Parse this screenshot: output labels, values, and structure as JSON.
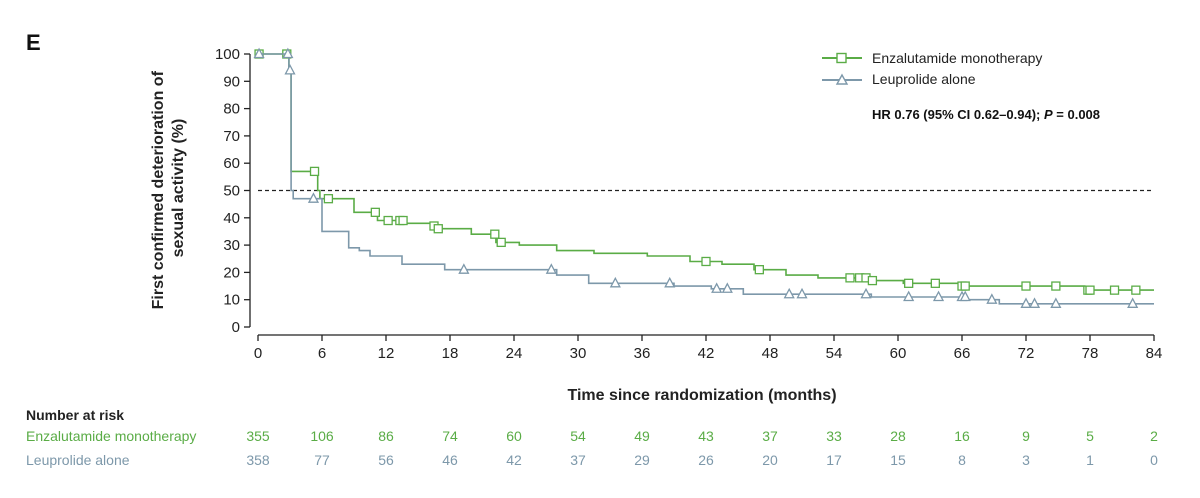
{
  "chart_data": {
    "type": "line",
    "panel_label": "E",
    "xlabel": "Time since randomization (months)",
    "ylabel_lines": [
      "First confirmed deterioration of",
      "sexual activity (%)"
    ],
    "xlim": [
      0,
      84
    ],
    "ylim": [
      0,
      100
    ],
    "xticks": [
      0,
      6,
      12,
      18,
      24,
      30,
      36,
      42,
      48,
      54,
      60,
      66,
      72,
      78,
      84
    ],
    "yticks": [
      0,
      10,
      20,
      30,
      40,
      50,
      60,
      70,
      80,
      90,
      100
    ],
    "reference_line_y": 50,
    "legend_position": "top-right",
    "annotation": {
      "pre": "HR 0.76 (95% CI 0.62–0.94); ",
      "p_label": "P",
      "post": " = 0.008"
    },
    "series": [
      {
        "name": "Enzalutamide monotherapy",
        "color": "#5aac46",
        "marker": "square",
        "steps": [
          [
            0,
            100
          ],
          [
            2.5,
            100
          ],
          [
            2.9,
            94
          ],
          [
            3.1,
            57
          ],
          [
            5.5,
            57
          ],
          [
            5.6,
            50
          ],
          [
            5.8,
            47
          ],
          [
            8.5,
            47
          ],
          [
            9,
            42
          ],
          [
            11,
            42
          ],
          [
            11.2,
            39
          ],
          [
            13.5,
            39
          ],
          [
            13.8,
            38
          ],
          [
            16,
            38
          ],
          [
            16.3,
            37
          ],
          [
            16.8,
            36
          ],
          [
            19.5,
            36
          ],
          [
            20,
            34
          ],
          [
            22,
            34
          ],
          [
            22.3,
            31
          ],
          [
            24,
            31
          ],
          [
            24.5,
            30
          ],
          [
            27,
            30
          ],
          [
            28,
            28
          ],
          [
            31,
            28
          ],
          [
            31.5,
            27
          ],
          [
            36,
            27
          ],
          [
            36.5,
            26
          ],
          [
            40,
            26
          ],
          [
            40.5,
            24
          ],
          [
            43,
            24
          ],
          [
            43.5,
            23
          ],
          [
            46,
            23
          ],
          [
            46.5,
            21
          ],
          [
            49,
            21
          ],
          [
            49.5,
            19
          ],
          [
            52,
            19
          ],
          [
            52.5,
            18
          ],
          [
            57,
            18
          ],
          [
            57.5,
            17
          ],
          [
            60,
            17
          ],
          [
            60.5,
            16
          ],
          [
            65,
            16
          ],
          [
            66,
            15
          ],
          [
            77,
            15
          ],
          [
            77.5,
            13.5
          ],
          [
            84,
            13.5
          ]
        ],
        "censor_x": [
          0.1,
          2.7,
          5.3,
          6.6,
          11.0,
          12.2,
          13.3,
          13.6,
          16.5,
          16.9,
          22.2,
          22.8,
          42.0,
          47.0,
          55.5,
          56.4,
          57.0,
          57.6,
          61.0,
          63.5,
          66.0,
          66.3,
          72.0,
          74.8,
          77.8,
          78.0,
          80.3,
          82.3
        ]
      },
      {
        "name": "Leuprolide alone",
        "color": "#7d98aa",
        "marker": "triangle",
        "steps": [
          [
            0,
            100
          ],
          [
            2.5,
            100
          ],
          [
            2.9,
            94
          ],
          [
            3.1,
            50
          ],
          [
            3.3,
            47
          ],
          [
            5.6,
            47
          ],
          [
            6,
            35
          ],
          [
            8,
            35
          ],
          [
            8.5,
            29
          ],
          [
            9.5,
            28
          ],
          [
            10.5,
            26
          ],
          [
            13,
            26
          ],
          [
            13.5,
            23
          ],
          [
            17,
            23
          ],
          [
            17.5,
            21
          ],
          [
            27,
            21
          ],
          [
            28,
            19
          ],
          [
            30,
            19
          ],
          [
            31,
            16
          ],
          [
            38.5,
            16
          ],
          [
            39,
            15
          ],
          [
            42,
            15
          ],
          [
            42.5,
            14
          ],
          [
            45,
            14
          ],
          [
            45.5,
            12
          ],
          [
            57,
            12
          ],
          [
            57.5,
            11
          ],
          [
            66,
            11
          ],
          [
            66.5,
            10
          ],
          [
            69,
            10
          ],
          [
            69.5,
            8.5
          ],
          [
            84,
            8.5
          ]
        ],
        "censor_x": [
          0.1,
          2.8,
          3.0,
          5.2,
          19.3,
          27.5,
          33.5,
          38.6,
          43.0,
          44.0,
          49.8,
          51.0,
          57.0,
          61.0,
          63.8,
          66.0,
          66.3,
          68.8,
          72.0,
          72.8,
          74.8,
          82.0
        ]
      }
    ],
    "risk_table": {
      "title": "Number at risk",
      "times": [
        0,
        6,
        12,
        18,
        24,
        30,
        36,
        42,
        48,
        54,
        60,
        66,
        72,
        78,
        84
      ],
      "rows": [
        {
          "label": "Enzalutamide monotherapy",
          "color": "#5aac46",
          "counts": [
            "355",
            "106",
            "86",
            "74",
            "60",
            "54",
            "49",
            "43",
            "37",
            "33",
            "28",
            "16",
            "9",
            "5",
            "2"
          ]
        },
        {
          "label": "Leuprolide alone",
          "color": "#7d98aa",
          "counts": [
            "358",
            "77",
            "56",
            "46",
            "42",
            "37",
            "29",
            "26",
            "20",
            "17",
            "15",
            "8",
            "3",
            "1",
            "0"
          ]
        }
      ]
    }
  }
}
